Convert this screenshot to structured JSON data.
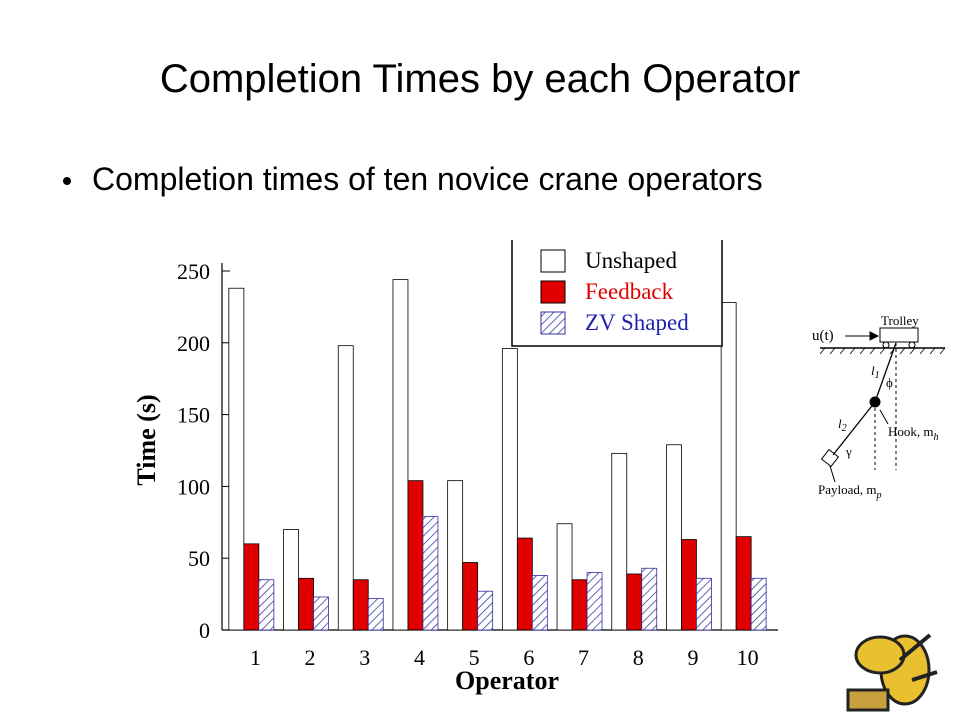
{
  "slide": {
    "title": "Completion Times by each Operator",
    "bullet": "Completion times of ten novice crane operators"
  },
  "chart_data": {
    "type": "bar",
    "y_label": "Time (s)",
    "x_label": "Operator",
    "categories": [
      "1",
      "2",
      "3",
      "4",
      "5",
      "6",
      "7",
      "8",
      "9",
      "10"
    ],
    "series": [
      {
        "name": "Unshaped",
        "color": "#ffffff",
        "label_color": "#000000",
        "pattern": "none",
        "values": [
          238,
          70,
          198,
          244,
          104,
          196,
          74,
          123,
          129,
          228
        ]
      },
      {
        "name": "Feedback",
        "color": "#e00000",
        "label_color": "#e00000",
        "pattern": "none",
        "values": [
          60,
          36,
          35,
          104,
          47,
          64,
          35,
          39,
          63,
          65
        ]
      },
      {
        "name": "ZV Shaped",
        "color": "#3030a0",
        "label_color": "#2020b0",
        "pattern": "hatch",
        "values": [
          35,
          23,
          22,
          79,
          27,
          38,
          40,
          43,
          36,
          36
        ]
      }
    ],
    "ylim": [
      0,
      250
    ],
    "yticks": [
      0,
      50,
      100,
      150,
      200,
      250
    ],
    "grid": false
  },
  "diagram": {
    "input": "u(t)",
    "trolley": "Trolley",
    "l1": {
      "symbol": "l",
      "sub": "1"
    },
    "phi": "ϕ",
    "hook": {
      "text": "Hook, m",
      "sub": "h"
    },
    "l2": {
      "symbol": "l",
      "sub": "2"
    },
    "gamma": "γ",
    "payload": {
      "text": "Payload, m",
      "sub": "p"
    }
  }
}
